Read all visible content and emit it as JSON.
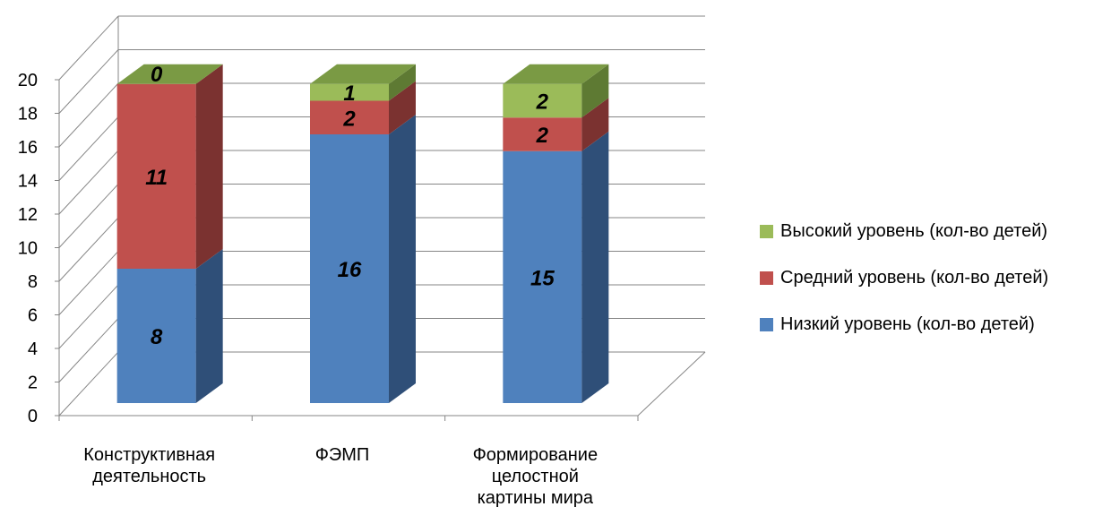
{
  "chart_data": {
    "type": "bar",
    "stacked": true,
    "three_d": true,
    "categories": [
      [
        "Конструктивная",
        "деятельность"
      ],
      [
        "ФЭМП"
      ],
      [
        "Формирование",
        "целостной",
        "картины мира"
      ]
    ],
    "series": [
      {
        "name": "Низкий уровень (кол-во детей)",
        "values": [
          8,
          16,
          15
        ],
        "color": "#4F81BD",
        "side_color": "#2F4F78",
        "top_color": "#5A84C0"
      },
      {
        "name": "Средний уровень (кол-во детей)",
        "values": [
          11,
          2,
          2
        ],
        "color": "#C0504D",
        "side_color": "#7B3230",
        "top_color": "#C35753"
      },
      {
        "name": "Высокий уровень (кол-во детей)",
        "values": [
          0,
          1,
          2
        ],
        "color": "#9BBB59",
        "side_color": "#5E7A33",
        "top_color": "#7A9A44"
      }
    ],
    "ylim": [
      0,
      20
    ],
    "yticks": [
      0,
      2,
      4,
      6,
      8,
      10,
      12,
      14,
      16,
      18,
      20
    ],
    "grid": true,
    "legend_position": "right",
    "title": "",
    "xlabel": "",
    "ylabel": ""
  }
}
